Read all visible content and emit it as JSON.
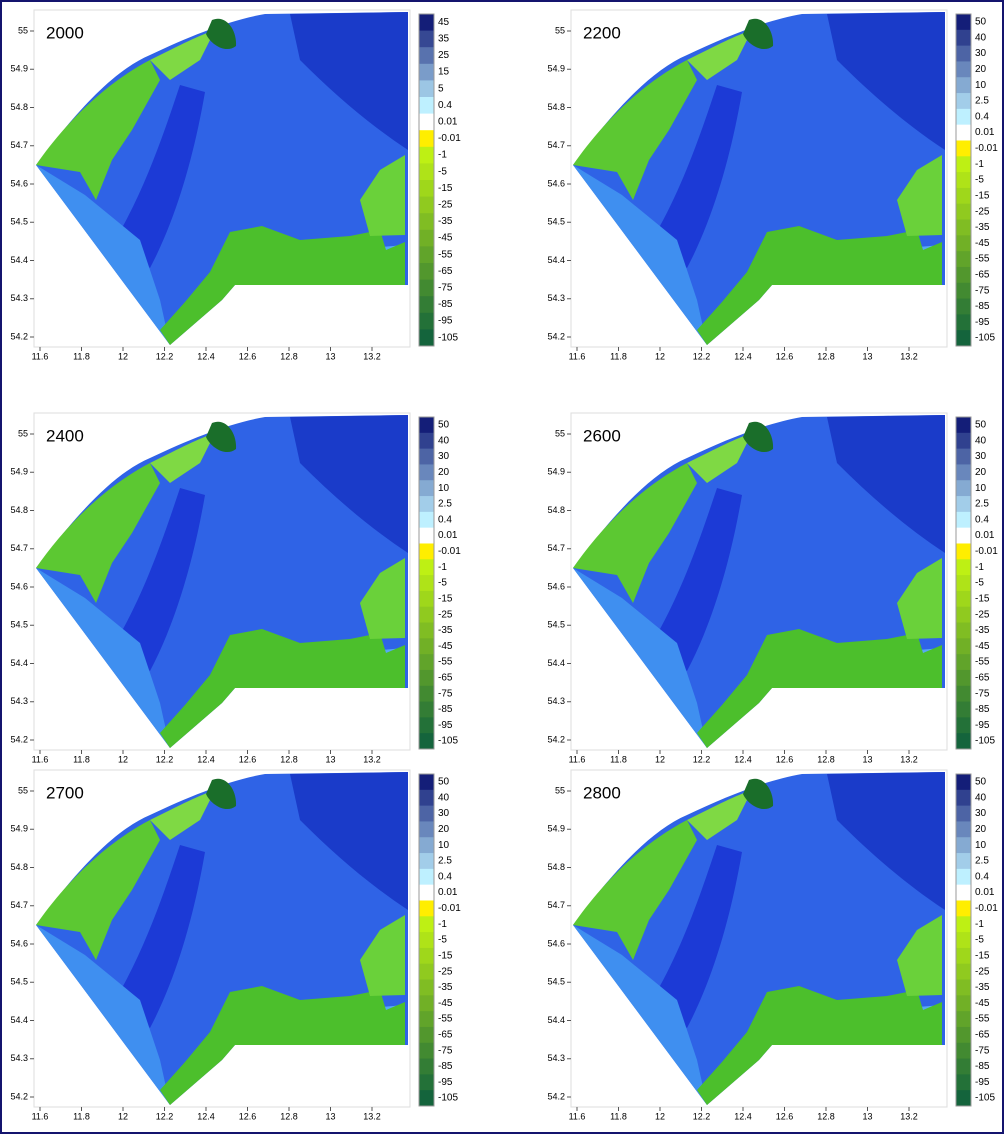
{
  "panels": [
    {
      "label": "2000",
      "xticks": [
        11.6,
        11.8,
        12,
        12.2,
        12.4,
        12.6,
        12.8,
        13,
        13.2
      ],
      "yticks": [
        55,
        54.9,
        54.8,
        54.7,
        54.6,
        54.5,
        54.4,
        54.3,
        54.2
      ],
      "colorbar": [
        45,
        35,
        25,
        15,
        5,
        0.4,
        0.01,
        -0.01,
        -1,
        -5,
        -15,
        -25,
        -35,
        -45,
        -55,
        -65,
        -75,
        -85,
        -95,
        -105
      ]
    },
    {
      "label": "2200",
      "xticks": [
        11.6,
        11.8,
        12,
        12.2,
        12.4,
        12.6,
        12.8,
        13,
        13.2
      ],
      "yticks": [
        55,
        54.9,
        54.8,
        54.7,
        54.6,
        54.5,
        54.4,
        54.3,
        54.2
      ],
      "colorbar": [
        50,
        40,
        30,
        20,
        10,
        2.5,
        0.4,
        0.01,
        -0.01,
        -1,
        -5,
        -15,
        -25,
        -35,
        -45,
        -55,
        -65,
        -75,
        -85,
        -95,
        -105
      ]
    },
    {
      "label": "2400",
      "xticks": [
        11.6,
        11.8,
        12,
        12.2,
        12.4,
        12.6,
        12.8,
        13,
        13.2
      ],
      "yticks": [
        55,
        54.9,
        54.8,
        54.7,
        54.6,
        54.5,
        54.4,
        54.3,
        54.2
      ],
      "colorbar": [
        50,
        40,
        30,
        20,
        10,
        2.5,
        0.4,
        0.01,
        -0.01,
        -1,
        -5,
        -15,
        -25,
        -35,
        -45,
        -55,
        -65,
        -75,
        -85,
        -95,
        -105
      ]
    },
    {
      "label": "2600",
      "xticks": [
        11.6,
        11.8,
        12,
        12.2,
        12.4,
        12.6,
        12.8,
        13,
        13.2
      ],
      "yticks": [
        55,
        54.9,
        54.8,
        54.7,
        54.6,
        54.5,
        54.4,
        54.3,
        54.2
      ],
      "colorbar": [
        50,
        40,
        30,
        20,
        10,
        2.5,
        0.4,
        0.01,
        -0.01,
        -1,
        -5,
        -15,
        -25,
        -35,
        -45,
        -55,
        -65,
        -75,
        -85,
        -95,
        -105
      ]
    },
    {
      "label": "2700",
      "xticks": [
        11.6,
        11.8,
        12,
        12.2,
        12.4,
        12.6,
        12.8,
        13,
        13.2
      ],
      "yticks": [
        55,
        54.9,
        54.8,
        54.7,
        54.6,
        54.5,
        54.4,
        54.3,
        54.2
      ],
      "colorbar": [
        50,
        40,
        30,
        20,
        10,
        2.5,
        0.4,
        0.01,
        -0.01,
        -1,
        -5,
        -15,
        -25,
        -35,
        -45,
        -55,
        -65,
        -75,
        -85,
        -95,
        -105
      ]
    },
    {
      "label": "2800",
      "xticks": [
        11.6,
        11.8,
        12,
        12.2,
        12.4,
        12.6,
        12.8,
        13,
        13.2
      ],
      "yticks": [
        55,
        54.9,
        54.8,
        54.7,
        54.6,
        54.5,
        54.4,
        54.3,
        54.2
      ],
      "colorbar": [
        50,
        40,
        30,
        20,
        10,
        2.5,
        0.4,
        0.01,
        -0.01,
        -1,
        -5,
        -15,
        -25,
        -35,
        -45,
        -55,
        -65,
        -75,
        -85,
        -95,
        -105
      ]
    }
  ]
}
